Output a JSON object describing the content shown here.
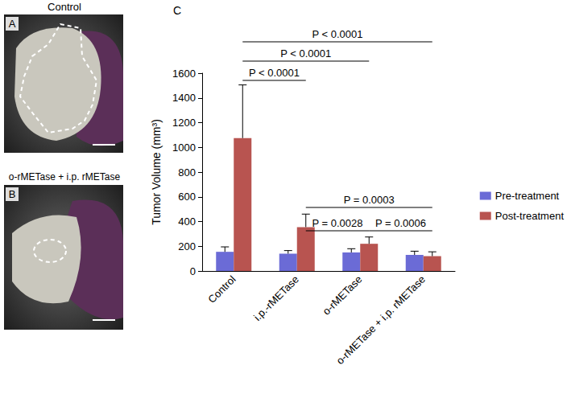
{
  "panels": [
    {
      "letter": "A",
      "title": "Control"
    },
    {
      "letter": "B",
      "title": "o-rMETase + i.p. rMETase"
    }
  ],
  "chart_data": {
    "type": "bar",
    "panel_letter": "C",
    "y_label": "Tumor Volume (mm³)",
    "categories": [
      "Control",
      "i.p.-rMETase",
      "o-rMETase",
      "o-rMETase + i.p. rMETase"
    ],
    "series": [
      {
        "name": "Pre-treatment",
        "color": "#6b6bd6",
        "values": [
          155,
          140,
          150,
          130
        ],
        "errors": [
          40,
          25,
          30,
          30
        ]
      },
      {
        "name": "Post-treatment",
        "color": "#b85450",
        "values": [
          1075,
          355,
          220,
          120
        ],
        "errors": [
          430,
          105,
          55,
          35
        ]
      }
    ],
    "ylim": [
      0,
      1600
    ],
    "yticks": [
      0,
      200,
      400,
      600,
      800,
      1000,
      1200,
      1400,
      1600
    ],
    "grid": false,
    "legend": "right",
    "annotations": [
      {
        "text": "P < 0.0001",
        "from": "Control",
        "to": "o-rMETase + i.p. rMETase"
      },
      {
        "text": "P < 0.0001",
        "from": "Control",
        "to": "o-rMETase"
      },
      {
        "text": "P < 0.0001",
        "from": "Control",
        "to": "i.p.-rMETase"
      },
      {
        "text": "P = 0.0003",
        "from": "i.p.-rMETase",
        "to": "o-rMETase + i.p. rMETase"
      },
      {
        "text": "P = 0.0028",
        "from": "i.p.-rMETase",
        "to": "o-rMETase"
      },
      {
        "text": "P = 0.0006",
        "from": "o-rMETase",
        "to": "o-rMETase + i.p. rMETase"
      }
    ]
  }
}
